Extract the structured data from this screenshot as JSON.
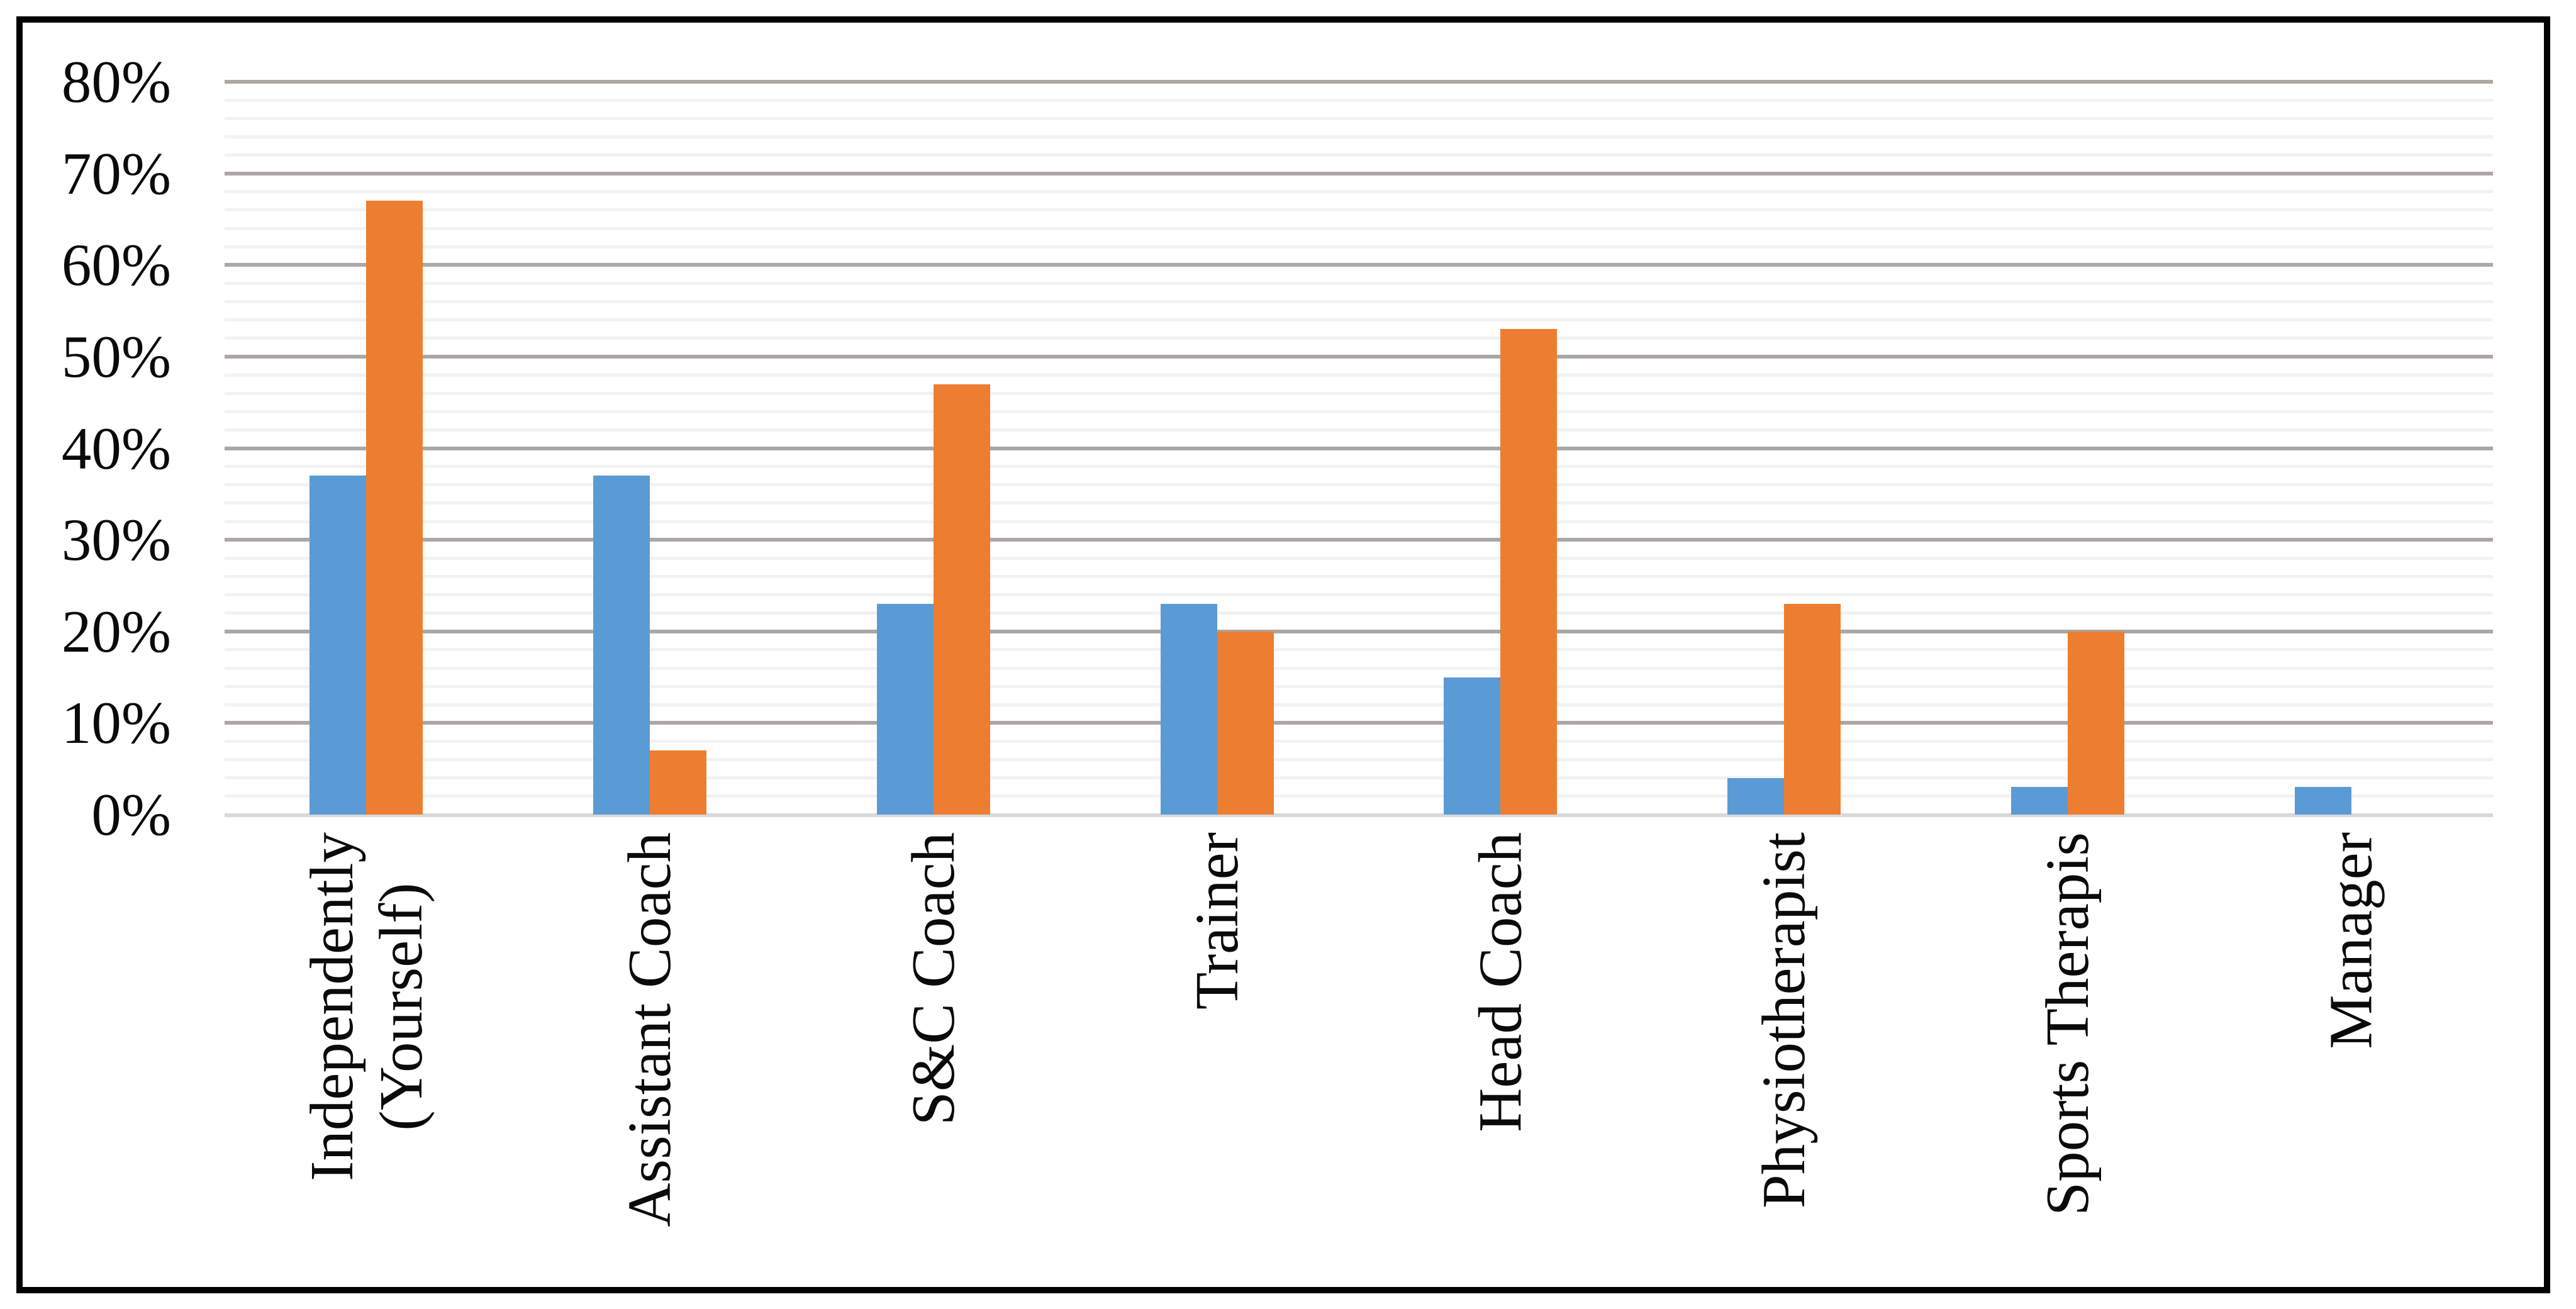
{
  "chart_data": {
    "type": "bar",
    "title": "",
    "xlabel": "",
    "ylabel": "",
    "categories": [
      "Independently\n(Yourself)",
      "Assistant Coach",
      "S&C Coach",
      "Trainer",
      "Head Coach",
      "Physiotherapist",
      "Sports Therapis",
      "Manager"
    ],
    "series": [
      {
        "name": "blue-series",
        "color": "#5B9BD5",
        "values": [
          37,
          37,
          23,
          23,
          15,
          4,
          3,
          3
        ]
      },
      {
        "name": "orange-series",
        "color": "#ED7D31",
        "values": [
          67,
          7,
          47,
          20,
          53,
          23,
          20,
          0
        ]
      }
    ],
    "y_axis": {
      "min": 0,
      "max": 80,
      "major_step": 10,
      "minor_step": 2,
      "tick_labels": [
        "0%",
        "10%",
        "20%",
        "30%",
        "40%",
        "50%",
        "60%",
        "70%",
        "80%"
      ]
    },
    "legend": "none",
    "grid": {
      "major": true,
      "minor": true,
      "major_color": "#ABA7A5",
      "minor_color": "#F2F2F2",
      "axis_line_color": "#D9D9D9"
    },
    "frame_color": "#000000",
    "text_color": "#0A0A0A"
  }
}
